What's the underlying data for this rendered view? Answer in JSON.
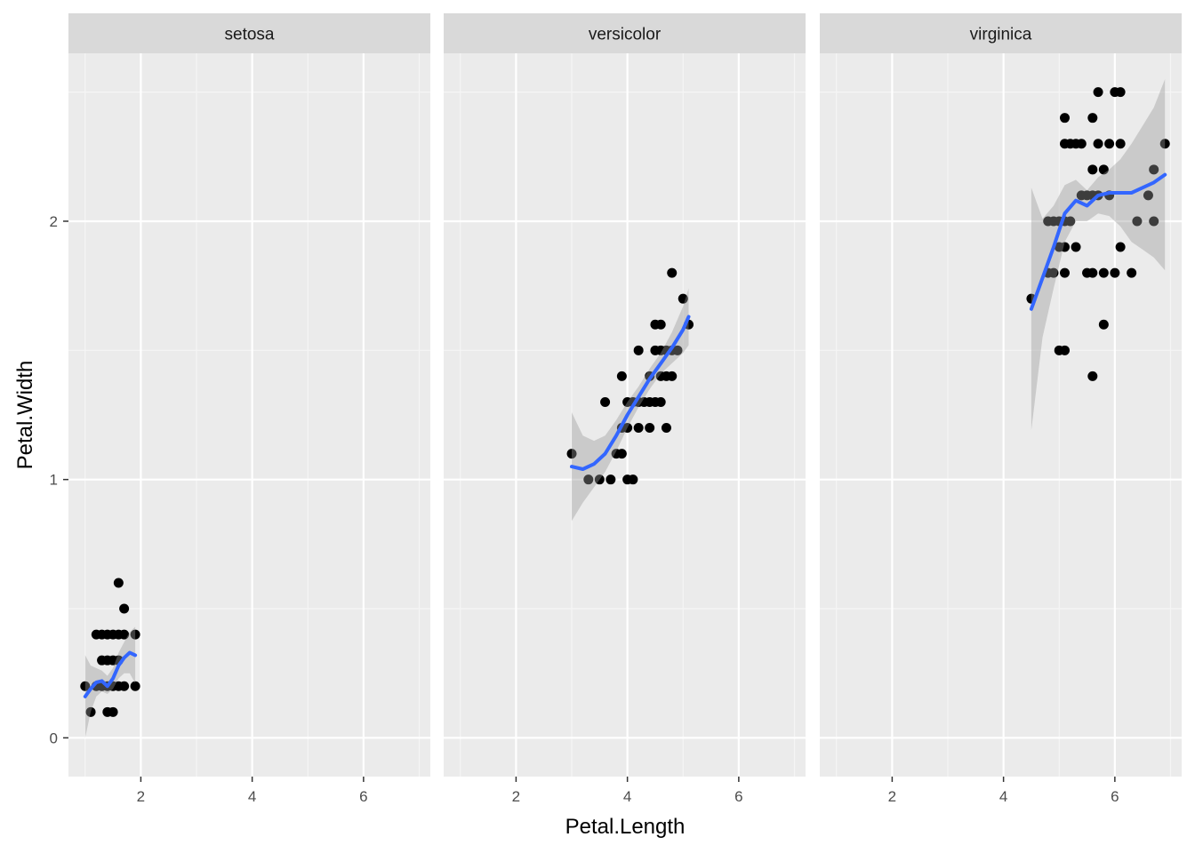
{
  "colors": {
    "panel_bg": "#ebebeb",
    "strip_bg": "#d9d9d9",
    "grid_major": "#ffffff",
    "grid_minor": "#f5f5f5",
    "point": "#000000",
    "smooth_line": "#3366ff",
    "ribbon": "#999999"
  },
  "chart_data": {
    "type": "scatter",
    "facet_variable": "Species",
    "xlabel": "Petal.Length",
    "ylabel": "Petal.Width",
    "xlim": [
      0.7,
      7.2
    ],
    "ylim": [
      -0.15,
      2.65
    ],
    "x_ticks": [
      2,
      4,
      6
    ],
    "x_tick_labels": [
      "2",
      "4",
      "6"
    ],
    "y_ticks": [
      0,
      1,
      2
    ],
    "y_tick_labels": [
      "0",
      "1",
      "2"
    ],
    "grid": true,
    "smoother": "loess with confidence band",
    "panels": [
      {
        "strip": "setosa",
        "points": [
          [
            1.0,
            0.2
          ],
          [
            1.1,
            0.1
          ],
          [
            1.2,
            0.2
          ],
          [
            1.3,
            0.2
          ],
          [
            1.3,
            0.3
          ],
          [
            1.3,
            0.4
          ],
          [
            1.4,
            0.1
          ],
          [
            1.4,
            0.2
          ],
          [
            1.4,
            0.3
          ],
          [
            1.4,
            0.4
          ],
          [
            1.5,
            0.1
          ],
          [
            1.5,
            0.2
          ],
          [
            1.5,
            0.3
          ],
          [
            1.5,
            0.4
          ],
          [
            1.6,
            0.2
          ],
          [
            1.6,
            0.4
          ],
          [
            1.6,
            0.6
          ],
          [
            1.7,
            0.2
          ],
          [
            1.7,
            0.4
          ],
          [
            1.7,
            0.5
          ],
          [
            1.9,
            0.2
          ],
          [
            1.9,
            0.4
          ],
          [
            1.2,
            0.4
          ],
          [
            1.6,
            0.3
          ]
        ],
        "smooth": {
          "x": [
            1.0,
            1.1,
            1.2,
            1.3,
            1.4,
            1.5,
            1.6,
            1.7,
            1.8,
            1.9
          ],
          "y": [
            0.16,
            0.19,
            0.215,
            0.22,
            0.2,
            0.23,
            0.28,
            0.31,
            0.33,
            0.32
          ],
          "lo": [
            0.0,
            0.1,
            0.16,
            0.18,
            0.17,
            0.19,
            0.23,
            0.25,
            0.25,
            0.21
          ],
          "hi": [
            0.32,
            0.28,
            0.27,
            0.26,
            0.24,
            0.27,
            0.33,
            0.37,
            0.41,
            0.43
          ]
        }
      },
      {
        "strip": "versicolor",
        "points": [
          [
            3.0,
            1.1
          ],
          [
            3.3,
            1.0
          ],
          [
            3.5,
            1.0
          ],
          [
            3.6,
            1.3
          ],
          [
            3.7,
            1.0
          ],
          [
            3.8,
            1.1
          ],
          [
            3.9,
            1.1
          ],
          [
            3.9,
            1.2
          ],
          [
            3.9,
            1.4
          ],
          [
            4.0,
            1.0
          ],
          [
            4.0,
            1.2
          ],
          [
            4.0,
            1.3
          ],
          [
            4.1,
            1.0
          ],
          [
            4.1,
            1.3
          ],
          [
            4.2,
            1.2
          ],
          [
            4.2,
            1.3
          ],
          [
            4.2,
            1.5
          ],
          [
            4.3,
            1.3
          ],
          [
            4.4,
            1.2
          ],
          [
            4.4,
            1.3
          ],
          [
            4.4,
            1.4
          ],
          [
            4.5,
            1.3
          ],
          [
            4.5,
            1.5
          ],
          [
            4.5,
            1.6
          ],
          [
            4.6,
            1.3
          ],
          [
            4.6,
            1.4
          ],
          [
            4.6,
            1.5
          ],
          [
            4.7,
            1.2
          ],
          [
            4.7,
            1.4
          ],
          [
            4.7,
            1.5
          ],
          [
            4.8,
            1.4
          ],
          [
            4.8,
            1.8
          ],
          [
            4.9,
            1.5
          ],
          [
            5.0,
            1.7
          ],
          [
            5.1,
            1.6
          ],
          [
            4.6,
            1.6
          ],
          [
            4.8,
            1.5
          ]
        ],
        "smooth": {
          "x": [
            3.0,
            3.2,
            3.4,
            3.6,
            3.8,
            4.0,
            4.2,
            4.4,
            4.6,
            4.8,
            5.0,
            5.1
          ],
          "y": [
            1.05,
            1.04,
            1.06,
            1.1,
            1.17,
            1.25,
            1.32,
            1.39,
            1.45,
            1.51,
            1.58,
            1.63
          ],
          "lo": [
            0.84,
            0.91,
            0.97,
            1.03,
            1.11,
            1.2,
            1.28,
            1.35,
            1.41,
            1.45,
            1.49,
            1.52
          ],
          "hi": [
            1.26,
            1.17,
            1.15,
            1.17,
            1.23,
            1.3,
            1.36,
            1.43,
            1.49,
            1.57,
            1.67,
            1.74
          ]
        }
      },
      {
        "strip": "virginica",
        "points": [
          [
            4.5,
            1.7
          ],
          [
            4.8,
            1.8
          ],
          [
            4.8,
            2.0
          ],
          [
            4.9,
            1.8
          ],
          [
            4.9,
            2.0
          ],
          [
            5.0,
            1.5
          ],
          [
            5.0,
            1.9
          ],
          [
            5.0,
            2.0
          ],
          [
            5.1,
            1.5
          ],
          [
            5.1,
            1.8
          ],
          [
            5.1,
            1.9
          ],
          [
            5.1,
            2.0
          ],
          [
            5.1,
            2.3
          ],
          [
            5.1,
            2.4
          ],
          [
            5.2,
            2.0
          ],
          [
            5.2,
            2.3
          ],
          [
            5.3,
            1.9
          ],
          [
            5.3,
            2.3
          ],
          [
            5.4,
            2.1
          ],
          [
            5.4,
            2.3
          ],
          [
            5.5,
            1.8
          ],
          [
            5.5,
            2.1
          ],
          [
            5.6,
            1.4
          ],
          [
            5.6,
            1.8
          ],
          [
            5.6,
            2.1
          ],
          [
            5.6,
            2.2
          ],
          [
            5.6,
            2.4
          ],
          [
            5.7,
            2.1
          ],
          [
            5.7,
            2.3
          ],
          [
            5.7,
            2.5
          ],
          [
            5.8,
            1.6
          ],
          [
            5.8,
            1.8
          ],
          [
            5.8,
            2.2
          ],
          [
            5.9,
            2.1
          ],
          [
            5.9,
            2.3
          ],
          [
            6.0,
            1.8
          ],
          [
            6.0,
            2.5
          ],
          [
            6.1,
            1.9
          ],
          [
            6.1,
            2.3
          ],
          [
            6.1,
            2.5
          ],
          [
            6.3,
            1.8
          ],
          [
            6.4,
            2.0
          ],
          [
            6.6,
            2.1
          ],
          [
            6.7,
            2.0
          ],
          [
            6.7,
            2.2
          ],
          [
            6.9,
            2.3
          ]
        ],
        "smooth": {
          "x": [
            4.5,
            4.7,
            4.9,
            5.1,
            5.3,
            5.5,
            5.7,
            5.9,
            6.1,
            6.3,
            6.5,
            6.7,
            6.9
          ],
          "y": [
            1.66,
            1.78,
            1.9,
            2.03,
            2.08,
            2.06,
            2.1,
            2.11,
            2.11,
            2.11,
            2.13,
            2.15,
            2.18
          ],
          "lo": [
            1.19,
            1.55,
            1.74,
            1.92,
            2.0,
            2.0,
            2.03,
            2.02,
            1.98,
            1.92,
            1.89,
            1.86,
            1.81
          ],
          "hi": [
            2.13,
            2.01,
            2.06,
            2.14,
            2.16,
            2.12,
            2.17,
            2.2,
            2.24,
            2.3,
            2.37,
            2.44,
            2.55
          ]
        }
      }
    ]
  }
}
